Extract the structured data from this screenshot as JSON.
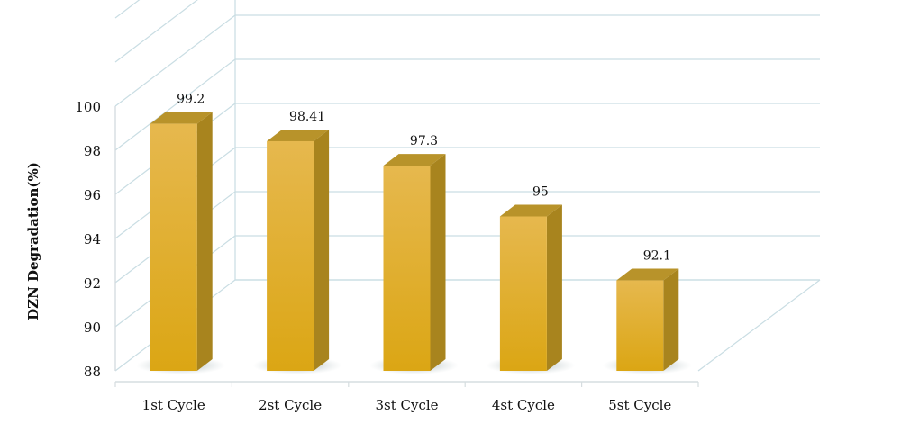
{
  "chart_data": {
    "type": "bar",
    "categories": [
      "1st Cycle",
      "2st Cycle",
      "3st Cycle",
      "4st Cycle",
      "5st Cycle"
    ],
    "values": [
      99.2,
      98.41,
      97.3,
      95,
      92.1
    ],
    "value_labels": [
      "99.2",
      "98.41",
      "97.3",
      "95",
      "92.1"
    ],
    "ylabel": "DZN Degradation(%)",
    "ylim": [
      88,
      100
    ],
    "yticks": [
      "88",
      "90",
      "92",
      "94",
      "96",
      "98",
      "100"
    ],
    "grid": true,
    "three_d": true,
    "colors": {
      "bar_front_top": "#e6b84e",
      "bar_front_bottom": "#dba614",
      "bar_side": "#a8841e",
      "bar_top": "#b8932a",
      "grid": "#c9dde3",
      "shadow": "#9aa9ab"
    }
  }
}
